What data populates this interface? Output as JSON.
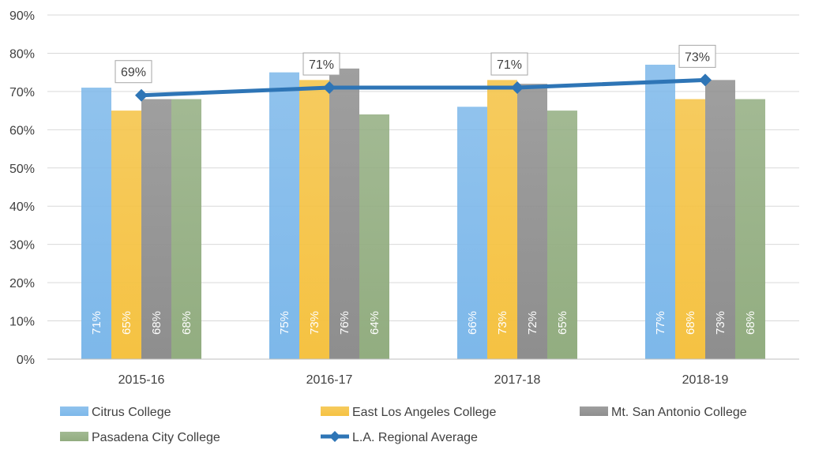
{
  "chart_data": {
    "type": "bar",
    "title": "",
    "xlabel": "",
    "ylabel": "",
    "ylim": [
      0,
      90
    ],
    "y_ticks": [
      "0%",
      "10%",
      "20%",
      "30%",
      "40%",
      "50%",
      "60%",
      "70%",
      "80%",
      "90%"
    ],
    "grid": true,
    "legend_position": "bottom",
    "categories": [
      "2015-16",
      "2016-17",
      "2017-18",
      "2018-19"
    ],
    "series": [
      {
        "name": "Citrus College",
        "kind": "bar",
        "color": "#7db8ea",
        "values": [
          71,
          75,
          66,
          77
        ],
        "labels": [
          "71%",
          "75%",
          "66%",
          "77%"
        ]
      },
      {
        "name": "East Los Angeles College",
        "kind": "bar",
        "color": "#f5c242",
        "values": [
          65,
          73,
          73,
          68
        ],
        "labels": [
          "65%",
          "73%",
          "73%",
          "68%"
        ]
      },
      {
        "name": "Mt. San Antonio College",
        "kind": "bar",
        "color": "#8e8e8e",
        "values": [
          68,
          76,
          72,
          73
        ],
        "labels": [
          "68%",
          "76%",
          "72%",
          "73%"
        ]
      },
      {
        "name": "Pasadena City College",
        "kind": "bar",
        "color": "#92ad80",
        "values": [
          68,
          64,
          65,
          68
        ],
        "labels": [
          "68%",
          "64%",
          "65%",
          "68%"
        ]
      },
      {
        "name": "L.A. Regional Average",
        "kind": "line",
        "color": "#2e75b6",
        "values": [
          69,
          71,
          71,
          73
        ],
        "labels": [
          "69%",
          "71%",
          "71%",
          "73%"
        ]
      }
    ]
  }
}
